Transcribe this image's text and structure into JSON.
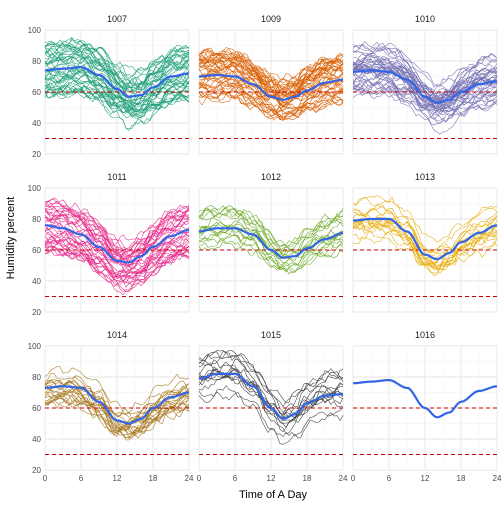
{
  "chart_data": {
    "type": "line",
    "layout": "facet-grid-3x3",
    "xlabel": "Time of A Day",
    "ylabel": "Humidity percent",
    "xlim": [
      0,
      24
    ],
    "ylim": [
      20,
      100
    ],
    "x_ticks": [
      0,
      6,
      12,
      18,
      24
    ],
    "x_tick_labels": [
      "0",
      "6",
      "12",
      "18",
      "24"
    ],
    "y_ticks": [
      20,
      40,
      60,
      80,
      100
    ],
    "y_tick_labels": [
      "20",
      "40",
      "60",
      "80",
      "100"
    ],
    "grid": true,
    "reference_lines": [
      {
        "y": 60,
        "style": "dashed",
        "color": "#cc0000"
      },
      {
        "y": 30,
        "style": "dashed",
        "color": "#cc0000"
      }
    ],
    "smooth_color": "#3366e6",
    "facets": [
      {
        "label": "1007",
        "color": "#1b9e77",
        "smooth": [
          [
            0,
            74
          ],
          [
            3,
            75
          ],
          [
            6,
            76
          ],
          [
            9,
            71
          ],
          [
            12,
            62
          ],
          [
            14,
            57
          ],
          [
            16,
            58
          ],
          [
            18,
            63
          ],
          [
            21,
            70
          ],
          [
            24,
            72
          ]
        ],
        "spread": 17,
        "n_lines": 45
      },
      {
        "label": "1009",
        "color": "#d95f02",
        "smooth": [
          [
            0,
            70
          ],
          [
            3,
            71
          ],
          [
            6,
            70
          ],
          [
            9,
            65
          ],
          [
            12,
            57
          ],
          [
            14,
            55
          ],
          [
            16,
            57
          ],
          [
            18,
            61
          ],
          [
            21,
            66
          ],
          [
            24,
            68
          ]
        ],
        "spread": 15,
        "n_lines": 45
      },
      {
        "label": "1010",
        "color": "#7570b3",
        "smooth": [
          [
            0,
            73
          ],
          [
            3,
            74
          ],
          [
            6,
            73
          ],
          [
            9,
            68
          ],
          [
            12,
            57
          ],
          [
            14,
            53
          ],
          [
            16,
            55
          ],
          [
            18,
            60
          ],
          [
            21,
            65
          ],
          [
            24,
            67
          ]
        ],
        "spread": 16,
        "n_lines": 45
      },
      {
        "label": "1011",
        "color": "#e7298a",
        "smooth": [
          [
            0,
            76
          ],
          [
            3,
            74
          ],
          [
            6,
            70
          ],
          [
            9,
            62
          ],
          [
            12,
            53
          ],
          [
            14,
            52
          ],
          [
            16,
            56
          ],
          [
            18,
            62
          ],
          [
            21,
            69
          ],
          [
            24,
            73
          ]
        ],
        "spread": 16,
        "n_lines": 40
      },
      {
        "label": "1012",
        "color": "#66a61e",
        "smooth": [
          [
            0,
            72
          ],
          [
            3,
            74
          ],
          [
            6,
            74
          ],
          [
            9,
            70
          ],
          [
            12,
            60
          ],
          [
            14,
            55
          ],
          [
            16,
            56
          ],
          [
            18,
            61
          ],
          [
            21,
            67
          ],
          [
            24,
            71
          ]
        ],
        "spread": 14,
        "n_lines": 18
      },
      {
        "label": "1013",
        "color": "#e6ab02",
        "smooth": [
          [
            0,
            79
          ],
          [
            3,
            80
          ],
          [
            6,
            80
          ],
          [
            9,
            72
          ],
          [
            12,
            57
          ],
          [
            14,
            54
          ],
          [
            16,
            58
          ],
          [
            18,
            65
          ],
          [
            21,
            71
          ],
          [
            24,
            76
          ]
        ],
        "spread": 14,
        "n_lines": 18
      },
      {
        "label": "1014",
        "color": "#a6761d",
        "smooth": [
          [
            0,
            73
          ],
          [
            3,
            74
          ],
          [
            6,
            73
          ],
          [
            9,
            64
          ],
          [
            12,
            52
          ],
          [
            14,
            50
          ],
          [
            16,
            53
          ],
          [
            18,
            60
          ],
          [
            21,
            67
          ],
          [
            24,
            70
          ]
        ],
        "spread": 12,
        "n_lines": 22
      },
      {
        "label": "1015",
        "color": "#3a3a3a",
        "smooth": [
          [
            0,
            79
          ],
          [
            3,
            82
          ],
          [
            6,
            82
          ],
          [
            9,
            74
          ],
          [
            12,
            60
          ],
          [
            14,
            53
          ],
          [
            16,
            56
          ],
          [
            18,
            63
          ],
          [
            21,
            68
          ],
          [
            24,
            69
          ]
        ],
        "spread": 14,
        "n_lines": 16
      },
      {
        "label": "1016",
        "color": "#3366e6",
        "smooth": [
          [
            0,
            76
          ],
          [
            3,
            77
          ],
          [
            6,
            78
          ],
          [
            9,
            73
          ],
          [
            12,
            60
          ],
          [
            14,
            54
          ],
          [
            16,
            57
          ],
          [
            18,
            64
          ],
          [
            21,
            71
          ],
          [
            24,
            74
          ]
        ],
        "spread": 0,
        "n_lines": 0
      }
    ]
  }
}
